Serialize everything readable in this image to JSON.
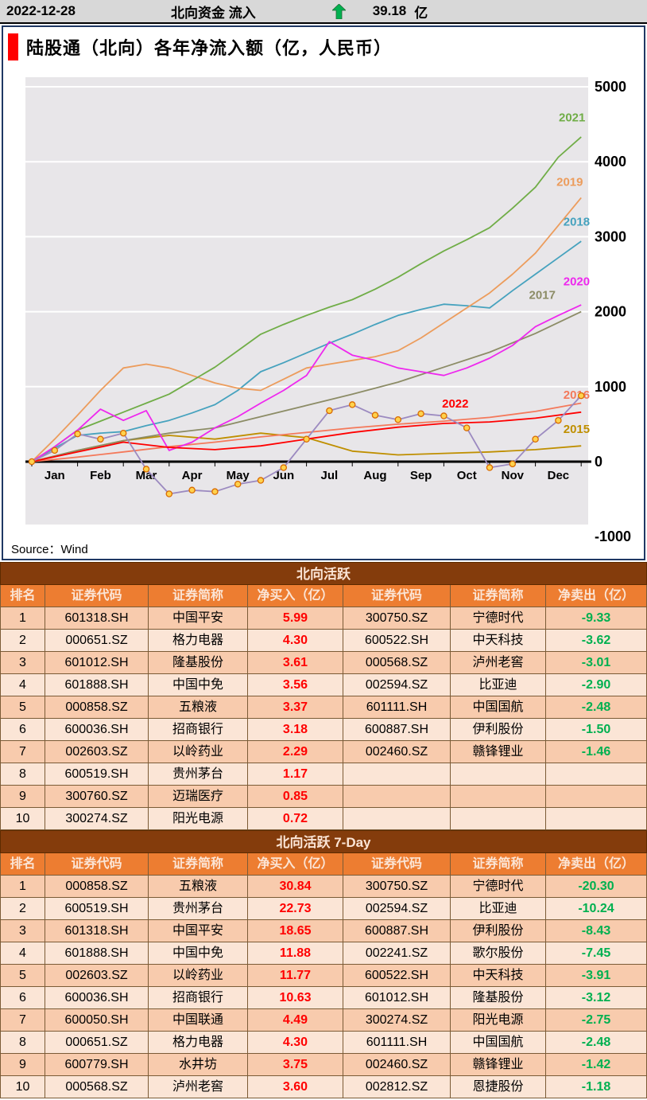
{
  "header": {
    "date": "2022-12-28",
    "flow_label": "北向资金 流入",
    "flow_value": "39.18",
    "flow_unit": "亿",
    "arrow_color": "#00B050"
  },
  "chart": {
    "title": "陆股通（北向）各年净流入额（亿，人民币）",
    "source_label": "Source：Wind",
    "accent_color": "#FF0000",
    "border_color": "#1F3864"
  },
  "chart_data": {
    "type": "line",
    "title": "陆股通（北向）各年净流入额（亿，人民币）",
    "x_tick_labels": [
      "Jan",
      "Feb",
      "Mar",
      "Apr",
      "May",
      "Jun",
      "Jul",
      "Aug",
      "Sep",
      "Oct",
      "Nov",
      "Dec"
    ],
    "ylim": [
      -1000,
      5000
    ],
    "yticks": [
      5000,
      4000,
      3000,
      2000,
      1000,
      0,
      -1000
    ],
    "grid": "horizontal",
    "plot_bg": "#E8E6E9",
    "grid_color": "#FFFFFF",
    "axis_color": "#000000",
    "legend": "inline-labels",
    "series": [
      {
        "name": "2015",
        "color": "#BF8F00",
        "label_at": [
          11.9,
          380
        ],
        "x": [
          0,
          1,
          2,
          3,
          4,
          5,
          6,
          7,
          8,
          9,
          10,
          11,
          12
        ],
        "values": [
          0,
          150,
          280,
          350,
          300,
          380,
          320,
          140,
          90,
          110,
          130,
          160,
          210
        ]
      },
      {
        "name": "2016",
        "color": "#F4795B",
        "label_at": [
          11.9,
          840
        ],
        "x": [
          0,
          1,
          2,
          3,
          4,
          5,
          6,
          7,
          8,
          9,
          10,
          11,
          12
        ],
        "values": [
          0,
          60,
          130,
          200,
          260,
          330,
          390,
          450,
          500,
          540,
          590,
          670,
          780
        ]
      },
      {
        "name": "2017",
        "color": "#8C8C66",
        "label_at": [
          11.15,
          2170
        ],
        "x": [
          0,
          1,
          2,
          3,
          4,
          5,
          6,
          7,
          8,
          9,
          10,
          11,
          12
        ],
        "values": [
          0,
          150,
          280,
          380,
          450,
          600,
          750,
          900,
          1060,
          1260,
          1460,
          1710,
          2000
        ]
      },
      {
        "name": "2018",
        "color": "#46A2BE",
        "label_at": [
          11.9,
          3150
        ],
        "x": [
          0,
          0.5,
          1,
          1.5,
          2,
          2.5,
          3,
          3.5,
          4,
          4.5,
          5,
          5.5,
          6,
          6.5,
          7,
          7.5,
          8,
          8.5,
          9,
          9.5,
          10,
          10.5,
          11,
          11.5,
          12
        ],
        "values": [
          0,
          180,
          350,
          380,
          400,
          480,
          550,
          650,
          760,
          950,
          1200,
          1320,
          1450,
          1580,
          1700,
          1830,
          1950,
          2030,
          2100,
          2080,
          2050,
          2280,
          2500,
          2720,
          2940
        ]
      },
      {
        "name": "2019",
        "color": "#EC9C5C",
        "label_at": [
          11.75,
          3680
        ],
        "x": [
          0,
          0.5,
          1,
          1.5,
          2,
          2.5,
          3,
          3.5,
          4,
          4.5,
          5,
          5.5,
          6,
          6.5,
          7,
          7.5,
          8,
          8.5,
          9,
          9.5,
          10,
          10.5,
          11,
          11.5,
          12
        ],
        "values": [
          0,
          300,
          620,
          950,
          1250,
          1300,
          1250,
          1150,
          1050,
          980,
          950,
          1100,
          1250,
          1300,
          1350,
          1400,
          1480,
          1650,
          1850,
          2050,
          2250,
          2500,
          2780,
          3150,
          3520
        ]
      },
      {
        "name": "2021",
        "color": "#70AD47",
        "label_at": [
          11.8,
          4540
        ],
        "x": [
          0,
          0.5,
          1,
          1.5,
          2,
          2.5,
          3,
          3.5,
          4,
          4.5,
          5,
          5.5,
          6,
          6.5,
          7,
          7.5,
          8,
          8.5,
          9,
          9.5,
          10,
          10.5,
          11,
          11.5,
          12
        ],
        "values": [
          0,
          200,
          420,
          540,
          660,
          780,
          900,
          1080,
          1260,
          1480,
          1700,
          1830,
          1950,
          2060,
          2160,
          2300,
          2460,
          2640,
          2810,
          2960,
          3120,
          3380,
          3660,
          4060,
          4330
        ]
      },
      {
        "name": "2020",
        "color": "#EE28EE",
        "label_at": [
          11.9,
          2350
        ],
        "x": [
          0,
          0.5,
          1,
          1.5,
          2,
          2.5,
          3,
          3.5,
          4,
          4.5,
          5,
          5.5,
          6,
          6.5,
          7,
          7.5,
          8,
          8.5,
          9,
          9.5,
          10,
          10.5,
          11,
          11.5,
          12
        ],
        "values": [
          0,
          200,
          420,
          700,
          550,
          680,
          150,
          260,
          450,
          600,
          780,
          950,
          1150,
          1600,
          1420,
          1350,
          1250,
          1200,
          1150,
          1250,
          1380,
          1550,
          1800,
          1950,
          2090
        ]
      },
      {
        "name": "2022",
        "color": "#FF0000",
        "label_at": [
          9.25,
          720
        ],
        "x": [
          0,
          1,
          2,
          3,
          4,
          5,
          6,
          7,
          8,
          9,
          10,
          11,
          12
        ],
        "values": [
          0,
          130,
          260,
          190,
          160,
          210,
          300,
          390,
          460,
          510,
          530,
          580,
          660
        ]
      },
      {
        "name": "2022-daily-markers",
        "color": "#9C8AC0",
        "marker": {
          "fill": "#FFD24D",
          "stroke": "#D96B00"
        },
        "x": [
          0,
          0.5,
          1,
          1.5,
          2,
          2.5,
          3,
          3.5,
          4,
          4.5,
          5,
          5.5,
          6,
          6.5,
          7,
          7.5,
          8,
          8.5,
          9,
          9.5,
          10,
          10.5,
          11,
          11.5,
          12
        ],
        "values": [
          0,
          150,
          370,
          300,
          380,
          -100,
          -430,
          -380,
          -400,
          -300,
          -250,
          -80,
          300,
          680,
          760,
          620,
          560,
          640,
          610,
          450,
          -80,
          -30,
          300,
          550,
          880
        ]
      }
    ]
  },
  "tables": {
    "buy_color": "#FF0000",
    "sell_color": "#00B050",
    "title_bg": "#843C0C",
    "title_fg": "#FBE5D6",
    "header_bg": "#ED7D31",
    "header_fg": "#FBE5D6",
    "row_dark": "#F8CBAD",
    "row_light": "#FBE5D6",
    "list": [
      {
        "title": "北向活跃",
        "headers": [
          "排名",
          "证券代码",
          "证券简称",
          "净买入（亿）",
          "证券代码",
          "证券简称",
          "净卖出（亿）"
        ],
        "rows": [
          [
            "1",
            "601318.SH",
            "中国平安",
            "5.99",
            "300750.SZ",
            "宁德时代",
            "-9.33"
          ],
          [
            "2",
            "000651.SZ",
            "格力电器",
            "4.30",
            "600522.SH",
            "中天科技",
            "-3.62"
          ],
          [
            "3",
            "601012.SH",
            "隆基股份",
            "3.61",
            "000568.SZ",
            "泸州老窖",
            "-3.01"
          ],
          [
            "4",
            "601888.SH",
            "中国中免",
            "3.56",
            "002594.SZ",
            "比亚迪",
            "-2.90"
          ],
          [
            "5",
            "000858.SZ",
            "五粮液",
            "3.37",
            "601111.SH",
            "中国国航",
            "-2.48"
          ],
          [
            "6",
            "600036.SH",
            "招商银行",
            "3.18",
            "600887.SH",
            "伊利股份",
            "-1.50"
          ],
          [
            "7",
            "002603.SZ",
            "以岭药业",
            "2.29",
            "002460.SZ",
            "赣锋锂业",
            "-1.46"
          ],
          [
            "8",
            "600519.SH",
            "贵州茅台",
            "1.17",
            "",
            "",
            ""
          ],
          [
            "9",
            "300760.SZ",
            "迈瑞医疗",
            "0.85",
            "",
            "",
            ""
          ],
          [
            "10",
            "300274.SZ",
            "阳光电源",
            "0.72",
            "",
            "",
            ""
          ]
        ]
      },
      {
        "title": "北向活跃 7-Day",
        "headers": [
          "排名",
          "证券代码",
          "证券简称",
          "净买入（亿）",
          "证券代码",
          "证券简称",
          "净卖出（亿）"
        ],
        "rows": [
          [
            "1",
            "000858.SZ",
            "五粮液",
            "30.84",
            "300750.SZ",
            "宁德时代",
            "-20.30"
          ],
          [
            "2",
            "600519.SH",
            "贵州茅台",
            "22.73",
            "002594.SZ",
            "比亚迪",
            "-10.24"
          ],
          [
            "3",
            "601318.SH",
            "中国平安",
            "18.65",
            "600887.SH",
            "伊利股份",
            "-8.43"
          ],
          [
            "4",
            "601888.SH",
            "中国中免",
            "11.88",
            "002241.SZ",
            "歌尔股份",
            "-7.45"
          ],
          [
            "5",
            "002603.SZ",
            "以岭药业",
            "11.77",
            "600522.SH",
            "中天科技",
            "-3.91"
          ],
          [
            "6",
            "600036.SH",
            "招商银行",
            "10.63",
            "601012.SH",
            "隆基股份",
            "-3.12"
          ],
          [
            "7",
            "600050.SH",
            "中国联通",
            "4.49",
            "300274.SZ",
            "阳光电源",
            "-2.75"
          ],
          [
            "8",
            "000651.SZ",
            "格力电器",
            "4.30",
            "601111.SH",
            "中国国航",
            "-2.48"
          ],
          [
            "9",
            "600779.SH",
            "水井坊",
            "3.75",
            "002460.SZ",
            "赣锋锂业",
            "-1.42"
          ],
          [
            "10",
            "000568.SZ",
            "泸州老窖",
            "3.60",
            "002812.SZ",
            "恩捷股份",
            "-1.18"
          ]
        ]
      }
    ]
  }
}
